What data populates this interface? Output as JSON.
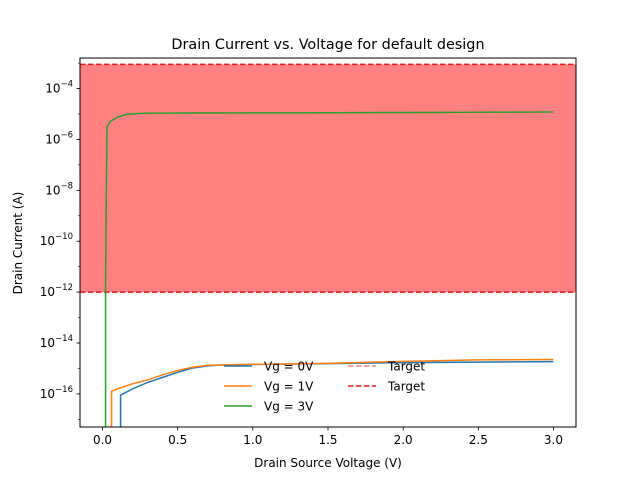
{
  "chart_data": {
    "type": "line",
    "title": "Drain Current vs. Voltage for default design",
    "xlabel": "Drain Source Voltage (V)",
    "ylabel": "Drain Current (A)",
    "yscale": "log",
    "xlim": [
      -0.15,
      3.15
    ],
    "ylim_log10": [
      -17.3,
      -2.8
    ],
    "x_ticks": [
      0.0,
      0.5,
      1.0,
      1.5,
      2.0,
      2.5,
      3.0
    ],
    "x_tick_labels": [
      "0.0",
      "0.5",
      "1.0",
      "1.5",
      "2.0",
      "2.5",
      "3.0"
    ],
    "y_ticks_log10": [
      -16,
      -14,
      -12,
      -10,
      -8,
      -6,
      -4
    ],
    "y_tick_labels": [
      {
        "base": "10",
        "exp": "−16"
      },
      {
        "base": "10",
        "exp": "−14"
      },
      {
        "base": "10",
        "exp": "−12"
      },
      {
        "base": "10",
        "exp": "−10"
      },
      {
        "base": "10",
        "exp": "−8"
      },
      {
        "base": "10",
        "exp": "−6"
      },
      {
        "base": "10",
        "exp": "−4"
      }
    ],
    "target_band": {
      "lower_log10": -12,
      "upper_log10": -3.05,
      "fill_color": "#ff8080",
      "line_color": "#e31a1c"
    },
    "series": [
      {
        "name": "Vg = 0V",
        "color": "#1f77b4",
        "x": [
          0.12,
          0.12,
          0.2,
          0.3,
          0.4,
          0.5,
          0.6,
          0.7,
          0.8,
          1.0,
          1.2,
          1.5,
          2.0,
          2.5,
          3.0
        ],
        "y_log10": [
          -17.5,
          -16.05,
          -15.8,
          -15.55,
          -15.35,
          -15.15,
          -14.98,
          -14.9,
          -14.86,
          -14.84,
          -14.83,
          -14.81,
          -14.77,
          -14.75,
          -14.73
        ]
      },
      {
        "name": "Vg = 1V",
        "color": "#ff7f0e",
        "x": [
          0.06,
          0.06,
          0.1,
          0.2,
          0.3,
          0.4,
          0.5,
          0.6,
          0.7,
          0.8,
          1.0,
          1.5,
          2.0,
          2.5,
          3.0
        ],
        "y_log10": [
          -17.5,
          -15.9,
          -15.8,
          -15.6,
          -15.45,
          -15.25,
          -15.08,
          -14.95,
          -14.88,
          -14.86,
          -14.84,
          -14.8,
          -14.72,
          -14.66,
          -14.65
        ]
      },
      {
        "name": "Vg = 3V",
        "color": "#2ca02c",
        "x": [
          0.02,
          0.02,
          0.025,
          0.03,
          0.05,
          0.1,
          0.15,
          0.2,
          0.3,
          0.5,
          1.0,
          1.5,
          2.0,
          2.5,
          3.0
        ],
        "y_log10": [
          -17.5,
          -12,
          -8,
          -5.5,
          -5.3,
          -5.12,
          -5.03,
          -4.99,
          -4.97,
          -4.96,
          -4.955,
          -4.95,
          -4.94,
          -4.93,
          -4.92
        ]
      }
    ],
    "legend": {
      "placement": "lower-center",
      "entries": [
        {
          "label": "Vg = 0V",
          "color": "#1f77b4",
          "style": "solid"
        },
        {
          "label": "Vg = 1V",
          "color": "#ff7f0e",
          "style": "solid"
        },
        {
          "label": "Vg = 3V",
          "color": "#2ca02c",
          "style": "solid"
        },
        {
          "label": "Target",
          "color": "#ff8080",
          "style": "dashed"
        },
        {
          "label": "Target",
          "color": "#e31a1c",
          "style": "dashed"
        }
      ]
    }
  }
}
